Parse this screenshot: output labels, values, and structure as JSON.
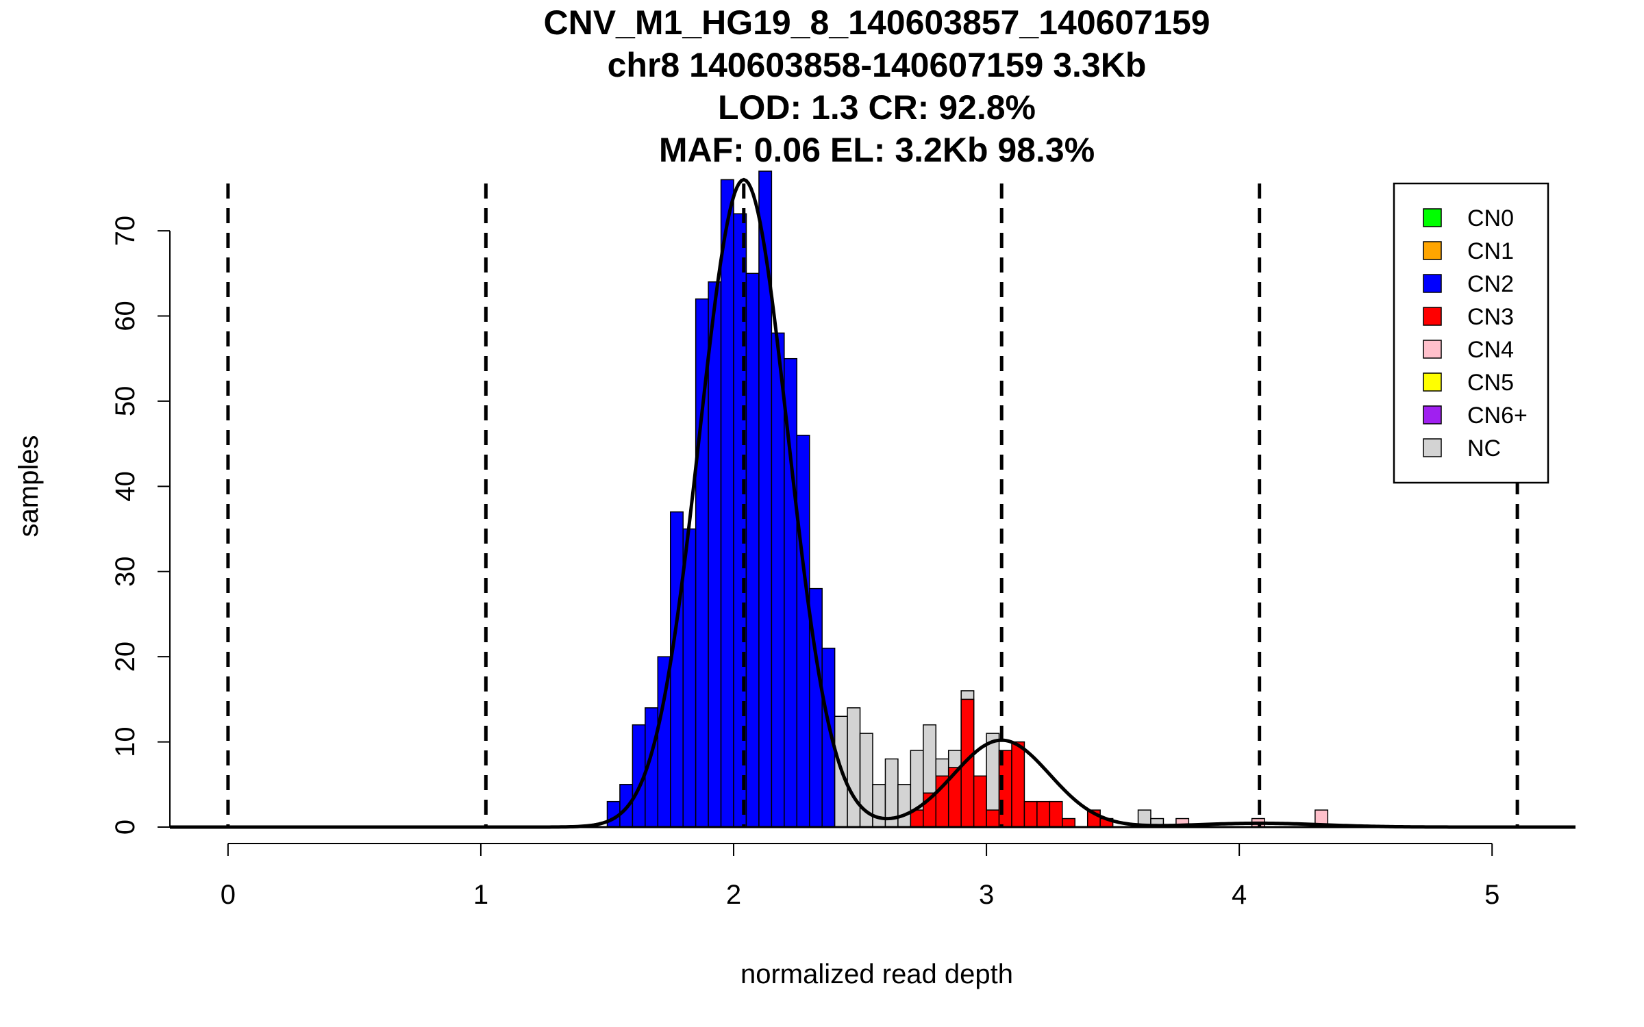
{
  "chart_data": {
    "type": "bar",
    "title_lines": [
      "CNV_M1_HG19_8_140603857_140607159",
      "chr8 140603858-140607159 3.3Kb",
      "LOD: 1.3 CR: 92.8%",
      "MAF: 0.06 EL: 3.2Kb 98.3%"
    ],
    "xlabel": "normalized read depth",
    "ylabel": "samples",
    "xlim": [
      -0.23,
      5.33
    ],
    "ylim": [
      0,
      77
    ],
    "x_ticks": [
      "0",
      "1",
      "2",
      "3",
      "4",
      "5"
    ],
    "y_ticks": [
      "0",
      "10",
      "20",
      "30",
      "40",
      "50",
      "60",
      "70"
    ],
    "bin_width": 0.05,
    "dashed_lines_x": [
      0,
      1.02,
      2.04,
      3.06,
      4.08,
      5.1
    ],
    "colors": {
      "CN0": "#00ff00",
      "CN1": "#ffa500",
      "CN2": "#0000ff",
      "CN3": "#ff0000",
      "CN4": "#ffc0cb",
      "CN5": "#ffff00",
      "CN6+": "#a020f0",
      "NC": "#d3d3d3"
    },
    "legend": [
      "CN0",
      "CN1",
      "CN2",
      "CN3",
      "CN4",
      "CN5",
      "CN6+",
      "NC"
    ],
    "legend_position": "top-right",
    "series": [
      {
        "name": "CN2",
        "bars": [
          {
            "x": 1.525,
            "y": 3
          },
          {
            "x": 1.575,
            "y": 5
          },
          {
            "x": 1.625,
            "y": 12
          },
          {
            "x": 1.675,
            "y": 14
          },
          {
            "x": 1.725,
            "y": 20
          },
          {
            "x": 1.775,
            "y": 37
          },
          {
            "x": 1.825,
            "y": 35
          },
          {
            "x": 1.875,
            "y": 62
          },
          {
            "x": 1.925,
            "y": 64
          },
          {
            "x": 1.975,
            "y": 76
          },
          {
            "x": 2.025,
            "y": 72
          },
          {
            "x": 2.075,
            "y": 65
          },
          {
            "x": 2.125,
            "y": 77
          },
          {
            "x": 2.175,
            "y": 58
          },
          {
            "x": 2.225,
            "y": 55
          },
          {
            "x": 2.275,
            "y": 46
          },
          {
            "x": 2.325,
            "y": 28
          },
          {
            "x": 2.375,
            "y": 21
          },
          {
            "x": 2.425,
            "y": 9
          },
          {
            "x": 2.475,
            "y": 5
          }
        ]
      },
      {
        "name": "NC",
        "bars": [
          {
            "x": 2.425,
            "y": 13
          },
          {
            "x": 2.475,
            "y": 14
          },
          {
            "x": 2.525,
            "y": 11
          },
          {
            "x": 2.575,
            "y": 5
          },
          {
            "x": 2.625,
            "y": 8
          },
          {
            "x": 2.675,
            "y": 5
          },
          {
            "x": 2.725,
            "y": 9
          },
          {
            "x": 2.775,
            "y": 12
          },
          {
            "x": 2.825,
            "y": 8
          },
          {
            "x": 2.875,
            "y": 9
          },
          {
            "x": 2.925,
            "y": 16
          },
          {
            "x": 3.025,
            "y": 11
          },
          {
            "x": 3.625,
            "y": 2
          },
          {
            "x": 3.675,
            "y": 1
          }
        ]
      },
      {
        "name": "CN3",
        "bars": [
          {
            "x": 2.725,
            "y": 2
          },
          {
            "x": 2.775,
            "y": 4
          },
          {
            "x": 2.825,
            "y": 6
          },
          {
            "x": 2.875,
            "y": 7
          },
          {
            "x": 2.925,
            "y": 15
          },
          {
            "x": 2.975,
            "y": 6
          },
          {
            "x": 3.025,
            "y": 2
          },
          {
            "x": 3.075,
            "y": 9
          },
          {
            "x": 3.125,
            "y": 10
          },
          {
            "x": 3.175,
            "y": 3
          },
          {
            "x": 3.225,
            "y": 3
          },
          {
            "x": 3.275,
            "y": 3
          },
          {
            "x": 3.325,
            "y": 1
          },
          {
            "x": 3.425,
            "y": 2
          },
          {
            "x": 3.475,
            "y": 1
          }
        ]
      },
      {
        "name": "CN4",
        "bars": [
          {
            "x": 3.775,
            "y": 1
          },
          {
            "x": 4.075,
            "y": 1
          },
          {
            "x": 4.325,
            "y": 2
          }
        ]
      }
    ],
    "fit_curves": [
      {
        "mean": 2.04,
        "sd": 0.175,
        "peak": 76
      },
      {
        "mean": 3.06,
        "sd": 0.19,
        "peak": 10.2
      },
      {
        "mean": 4.08,
        "sd": 0.25,
        "peak": 0.45
      }
    ]
  }
}
